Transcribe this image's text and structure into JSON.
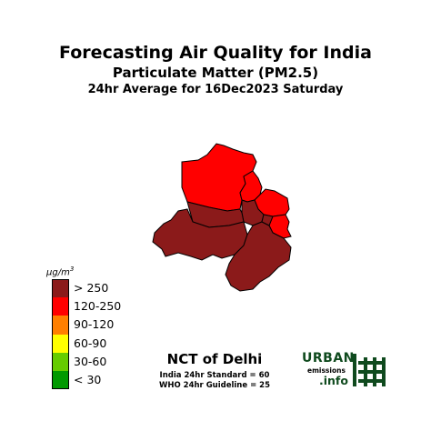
{
  "title": {
    "line1": "Forecasting Air Quality for India",
    "line2": "Particulate Matter (PM2.5)",
    "line3": "24hr Average for 16Dec2023 Saturday"
  },
  "map": {
    "region_name": "NCT of Delhi",
    "districts": [
      {
        "category": "120-250",
        "color": "#ff0000"
      },
      {
        "category": "120-250",
        "color": "#ff0000"
      },
      {
        "category": "120-250",
        "color": "#ff0000"
      },
      {
        "category": "120-250",
        "color": "#ff0000"
      },
      {
        "category": "> 250",
        "color": "#8b1a1a"
      },
      {
        "category": "> 250",
        "color": "#8b1a1a"
      },
      {
        "category": "> 250",
        "color": "#8b1a1a"
      },
      {
        "category": "> 250",
        "color": "#8b1a1a"
      },
      {
        "category": "> 250",
        "color": "#8b1a1a"
      }
    ]
  },
  "legend": {
    "unit_base": "μg/m",
    "unit_exp": "3",
    "items": [
      {
        "label": "> 250",
        "color": "#8b1a1a"
      },
      {
        "label": "120-250",
        "color": "#ff0000"
      },
      {
        "label": "90-120",
        "color": "#ff7f00"
      },
      {
        "label": "60-90",
        "color": "#ffff00"
      },
      {
        "label": "30-60",
        "color": "#66cc00"
      },
      {
        "label": "< 30",
        "color": "#009900"
      }
    ]
  },
  "standards": {
    "india": "India 24hr Standard = 60",
    "who": "WHO 24hr Guideline = 25"
  },
  "logo": {
    "urban": "URBAN",
    "emissions": "emissions",
    "info": ".info",
    "color": "#0f4a1e"
  }
}
